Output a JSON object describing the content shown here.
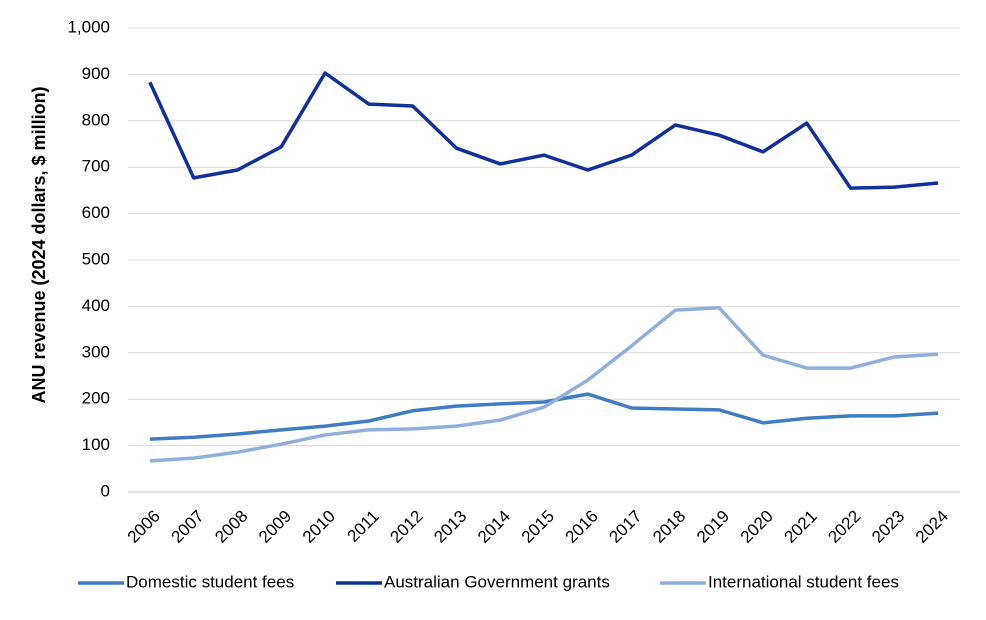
{
  "chart_data": {
    "type": "line",
    "y_label": "ANU revenue (2024 dollars, $ million)",
    "categories": [
      "2006",
      "2007",
      "2008",
      "2009",
      "2010",
      "2011",
      "2012",
      "2013",
      "2014",
      "2015",
      "2016",
      "2017",
      "2018",
      "2019",
      "2020",
      "2021",
      "2022",
      "2023",
      "2024"
    ],
    "series": [
      {
        "name": "Domestic student fees",
        "color": "#3f7cc1",
        "values": [
          114,
          118,
          125,
          134,
          142,
          153,
          175,
          185,
          190,
          194,
          211,
          181,
          179,
          177,
          149,
          159,
          164,
          164,
          170
        ]
      },
      {
        "name": "Australian Government grants",
        "color": "#10309a",
        "values": [
          883,
          677,
          694,
          744,
          903,
          836,
          832,
          741,
          707,
          726,
          694,
          726,
          791,
          769,
          733,
          795,
          655,
          657,
          666
        ]
      },
      {
        "name": "International student fees",
        "color": "#8fb0dc",
        "values": [
          67,
          73,
          86,
          103,
          123,
          134,
          136,
          142,
          155,
          183,
          241,
          315,
          392,
          397,
          295,
          267,
          267,
          291,
          297
        ]
      }
    ],
    "ylim": [
      0,
      1000
    ],
    "yticks": [
      0,
      100,
      200,
      300,
      400,
      500,
      600,
      700,
      800,
      900,
      {
        "value": 1000,
        "label": "1,000"
      }
    ],
    "grid": true,
    "legend": "bottom"
  }
}
